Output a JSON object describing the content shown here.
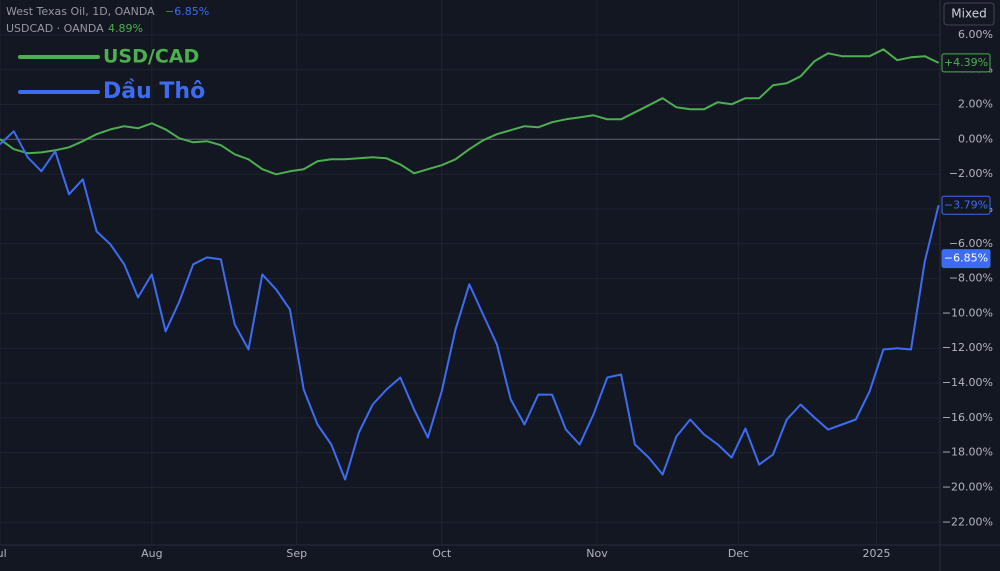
{
  "header": [
    {
      "text": "West Texas Oil, 1D, OANDA",
      "change": "−6.85%"
    },
    {
      "text": "USDCAD · OANDA",
      "change": "4.89%"
    }
  ],
  "button": "Mixed",
  "chart_data": {
    "type": "line",
    "x": [
      0,
      2,
      4,
      6,
      8,
      10,
      12,
      14,
      16,
      18,
      20,
      22,
      24,
      26,
      28,
      30,
      32,
      34,
      36,
      38,
      40,
      42,
      44,
      46,
      48,
      50,
      52,
      54,
      56,
      58,
      60,
      62,
      64,
      66,
      68,
      70,
      72,
      74,
      76,
      78,
      80,
      82,
      84,
      86,
      88,
      90,
      92,
      94,
      96,
      98,
      100,
      102,
      104,
      106,
      108,
      110,
      112,
      114,
      116,
      118,
      120,
      122,
      124,
      126,
      128,
      130,
      132,
      134,
      136
    ],
    "xlim": [
      0,
      136.2
    ],
    "xticks": [
      {
        "value": 0,
        "label": "Jul"
      },
      {
        "value": 22,
        "label": "Aug"
      },
      {
        "value": 43,
        "label": "Sep"
      },
      {
        "value": 64,
        "label": "Oct"
      },
      {
        "value": 86.5,
        "label": "Nov"
      },
      {
        "value": 107,
        "label": "Dec"
      },
      {
        "value": 127,
        "label": "2025"
      }
    ],
    "ylim": [
      -23.3,
      8.0
    ],
    "yticks": [
      {
        "value": 6,
        "label": "6.00%"
      },
      {
        "value": 4,
        "label": "4.00%"
      },
      {
        "value": 2,
        "label": "2.00%"
      },
      {
        "value": 0,
        "label": "0.00%"
      },
      {
        "value": -2,
        "label": "−2.00%"
      },
      {
        "value": -4,
        "label": "−4.00%"
      },
      {
        "value": -6,
        "label": "−6.00%"
      },
      {
        "value": -8,
        "label": "−8.00%"
      },
      {
        "value": -10,
        "label": "−10.00%"
      },
      {
        "value": -12,
        "label": "−12.00%"
      },
      {
        "value": -14,
        "label": "−14.00%"
      },
      {
        "value": -16,
        "label": "−16.00%"
      },
      {
        "value": -18,
        "label": "−18.00%"
      },
      {
        "value": -20,
        "label": "−20.00%"
      },
      {
        "value": -22,
        "label": "−22.00%"
      }
    ],
    "grid": true,
    "baseline": 0,
    "series": [
      {
        "name": "USD/CAD",
        "color": "#4caf50",
        "end_label": "+4.39%",
        "values": [
          0,
          -0.57,
          -0.8,
          -0.75,
          -0.63,
          -0.46,
          -0.11,
          0.29,
          0.57,
          0.75,
          0.63,
          0.92,
          0.57,
          0.06,
          -0.17,
          -0.11,
          -0.34,
          -0.86,
          -1.15,
          -1.72,
          -2.01,
          -1.84,
          -1.72,
          -1.26,
          -1.15,
          -1.15,
          -1.09,
          -1.03,
          -1.09,
          -1.44,
          -1.95,
          -1.72,
          -1.49,
          -1.15,
          -0.57,
          -0.06,
          0.29,
          0.52,
          0.75,
          0.69,
          0.98,
          1.15,
          1.26,
          1.38,
          1.15,
          1.15,
          1.55,
          1.95,
          2.36,
          1.84,
          1.72,
          1.72,
          2.13,
          2.01,
          2.36,
          2.36,
          3.1,
          3.22,
          3.62,
          4.48,
          4.94,
          4.77,
          4.77,
          4.77,
          5.17,
          4.54,
          4.71,
          4.77,
          4.39
        ]
      },
      {
        "name": "Dầu Thô",
        "color": "#3d6cf2",
        "end_label": "−3.79%",
        "values": [
          -0.29,
          0.46,
          -1.03,
          -1.84,
          -0.69,
          -3.16,
          -2.3,
          -5.29,
          -6.03,
          -7.18,
          -9.08,
          -7.76,
          -11.03,
          -9.31,
          -7.18,
          -6.78,
          -6.9,
          -10.63,
          -12.07,
          -7.76,
          -8.62,
          -9.77,
          -14.37,
          -16.38,
          -17.53,
          -19.54,
          -16.84,
          -15.23,
          -14.37,
          -13.68,
          -15.52,
          -17.13,
          -14.48,
          -10.92,
          -8.33,
          -10.06,
          -11.78,
          -14.94,
          -16.38,
          -14.66,
          -14.66,
          -16.67,
          -17.53,
          -15.8,
          -13.68,
          -13.51,
          -17.53,
          -18.28,
          -19.25,
          -17.07,
          -16.09,
          -16.95,
          -17.53,
          -18.28,
          -16.61,
          -18.68,
          -18.1,
          -16.09,
          -15.23,
          -15.98,
          -16.67,
          -16.38,
          -16.09,
          -14.48,
          -12.07,
          -12.0,
          -12.07,
          -7.01,
          -3.79
        ]
      }
    ],
    "price_tag": {
      "value": -6.85,
      "label": "−6.85%"
    }
  }
}
